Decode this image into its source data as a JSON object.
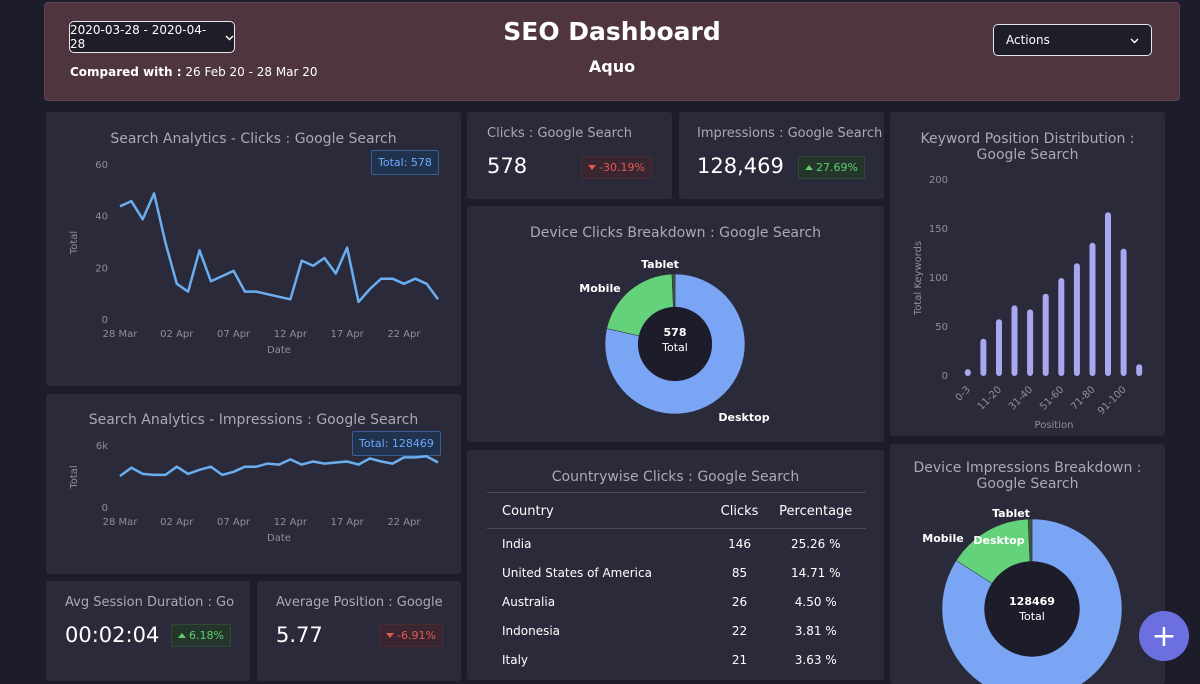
{
  "header": {
    "date_range": "2020-03-28 - 2020-04-28",
    "compared_label": "Compared with :",
    "compared_value": "26 Feb 20 - 28 Mar 20",
    "title": "SEO Dashboard",
    "subtitle": "Aquo",
    "actions_label": "Actions"
  },
  "clicks_chart": {
    "title": "Search Analytics - Clicks : Google Search",
    "total_badge": "Total: 578",
    "chart_data": {
      "type": "line",
      "title": "Search Analytics - Clicks : Google Search",
      "xlabel": "Date",
      "ylabel": "Total",
      "ylim": [
        0,
        60
      ],
      "yticks": [
        "0",
        "20",
        "40",
        "60"
      ],
      "xticks": [
        "28 Mar",
        "02 Apr",
        "07 Apr",
        "12 Apr",
        "17 Apr",
        "22 Apr"
      ],
      "color": "#6aaef0",
      "values": [
        44,
        46,
        39,
        49,
        30,
        14,
        11,
        27,
        15,
        17,
        19,
        11,
        11,
        10,
        9,
        8,
        23,
        21,
        24,
        18,
        28,
        7,
        12,
        16,
        16,
        14,
        16,
        14,
        8
      ]
    }
  },
  "impressions_chart": {
    "title": "Search Analytics - Impressions : Google Search",
    "total_badge": "Total: 128469",
    "chart_data": {
      "type": "line",
      "title": "Search Analytics - Impressions : Google Search",
      "xlabel": "Date",
      "ylabel": "Total",
      "ylim": [
        0,
        6000
      ],
      "yticks": [
        "0",
        "6k"
      ],
      "xticks": [
        "28 Mar",
        "02 Apr",
        "07 Apr",
        "12 Apr",
        "17 Apr",
        "22 Apr"
      ],
      "color": "#6aaef0",
      "values": [
        3100,
        3900,
        3300,
        3200,
        3200,
        4000,
        3300,
        3700,
        4000,
        3200,
        3500,
        4000,
        4000,
        4300,
        4200,
        4700,
        4200,
        4500,
        4300,
        4400,
        4500,
        4200,
        4800,
        4500,
        4300,
        4900,
        4900,
        5000,
        4400
      ]
    }
  },
  "kpis": {
    "clicks": {
      "title": "Clicks : Google Search",
      "value": "578",
      "delta": "-30.19%"
    },
    "impressions": {
      "title": "Impressions : Google Search",
      "value": "128,469",
      "delta": "27.69%"
    },
    "avg_session": {
      "title": "Avg Session Duration : Google",
      "value": "00:02:04",
      "delta": "6.18%"
    },
    "avg_position": {
      "title": "Average Position : Google Search",
      "value": "5.77",
      "delta": "-6.91%"
    }
  },
  "device_clicks": {
    "title": "Device Clicks Breakdown : Google Search",
    "center_value": "578",
    "center_label": "Total",
    "chart_data": {
      "type": "pie",
      "title": "Device Clicks Breakdown : Google Search",
      "labels": [
        "Desktop",
        "Mobile",
        "Tablet"
      ],
      "values": [
        454,
        120,
        4
      ],
      "colors": [
        "#7aa5f5",
        "#64d27a",
        "#3a5a3a"
      ]
    }
  },
  "keyword_distribution": {
    "title": "Keyword Position Distribution : Google Search",
    "chart_data": {
      "type": "bar",
      "title": "Keyword Position Distribution : Google Search",
      "xlabel": "Position",
      "ylabel": "Total Keywords",
      "ylim": [
        0,
        200
      ],
      "yticks": [
        "0",
        "50",
        "100",
        "150",
        "200"
      ],
      "categories": [
        "0-3",
        "",
        "11-20",
        "",
        "31-40",
        "",
        "51-60",
        "",
        "71-80",
        "",
        "91-100",
        ""
      ],
      "values": [
        7,
        38,
        58,
        72,
        68,
        84,
        100,
        115,
        136,
        167,
        130,
        12
      ],
      "color": "#a8a8f0"
    }
  },
  "country_clicks": {
    "title": "Countrywise Clicks : Google Search",
    "columns": [
      "Country",
      "Clicks",
      "Percentage"
    ],
    "rows": [
      [
        "India",
        "146",
        "25.26 %"
      ],
      [
        "United States of America",
        "85",
        "14.71 %"
      ],
      [
        "Australia",
        "26",
        "4.50 %"
      ],
      [
        "Indonesia",
        "22",
        "3.81 %"
      ],
      [
        "Italy",
        "21",
        "3.63 %"
      ]
    ]
  },
  "device_impressions": {
    "title": "Device Impressions Breakdown : Google Search",
    "center_value": "128469",
    "center_label": "Total",
    "chart_data": {
      "type": "pie",
      "title": "Device Impressions Breakdown : Google Search",
      "labels": [
        "Desktop",
        "Mobile",
        "Tablet"
      ],
      "values": [
        108000,
        19600,
        869
      ],
      "colors": [
        "#7aa5f5",
        "#64d27a",
        "#3a5a3a"
      ]
    }
  },
  "fab": {
    "label": "+"
  }
}
